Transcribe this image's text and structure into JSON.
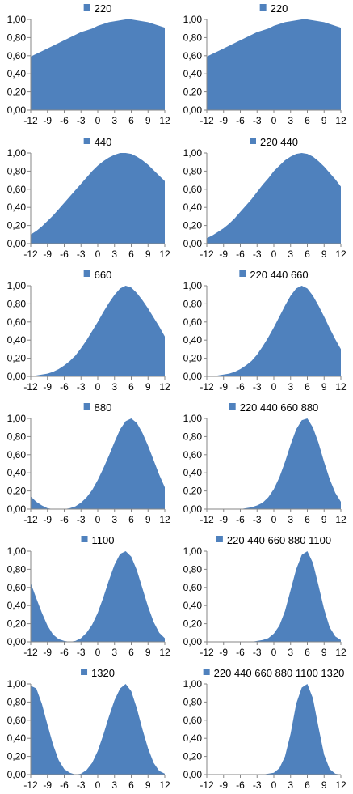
{
  "colors": {
    "series": "#4f81bd",
    "axis": "#868686"
  },
  "x_ticks": [
    "-12",
    "-9",
    "-6",
    "-3",
    "0",
    "3",
    "6",
    "9",
    "12"
  ],
  "y_ticks": [
    "0,00",
    "0,20",
    "0,40",
    "0,60",
    "0,80",
    "1,00"
  ],
  "chart_data": [
    {
      "type": "area",
      "legend": "220",
      "x": [
        -12,
        -11,
        -10,
        -9,
        -8,
        -7,
        -6,
        -5,
        -4,
        -3,
        -2,
        -1,
        0,
        1,
        2,
        3,
        4,
        5,
        6,
        7,
        8,
        9,
        10,
        11,
        12
      ],
      "series": [
        {
          "name": "220",
          "values": [
            0.59,
            0.62,
            0.65,
            0.68,
            0.71,
            0.74,
            0.77,
            0.8,
            0.83,
            0.86,
            0.88,
            0.9,
            0.93,
            0.95,
            0.97,
            0.98,
            0.99,
            1.0,
            1.0,
            0.99,
            0.98,
            0.97,
            0.95,
            0.93,
            0.91
          ]
        }
      ],
      "ylim": [
        0,
        1
      ]
    },
    {
      "type": "area",
      "legend": "220",
      "x": [
        -12,
        -11,
        -10,
        -9,
        -8,
        -7,
        -6,
        -5,
        -4,
        -3,
        -2,
        -1,
        0,
        1,
        2,
        3,
        4,
        5,
        6,
        7,
        8,
        9,
        10,
        11,
        12
      ],
      "series": [
        {
          "name": "220",
          "values": [
            0.59,
            0.62,
            0.65,
            0.68,
            0.71,
            0.74,
            0.77,
            0.8,
            0.83,
            0.86,
            0.88,
            0.9,
            0.93,
            0.95,
            0.97,
            0.98,
            0.99,
            1.0,
            1.0,
            0.99,
            0.98,
            0.97,
            0.95,
            0.93,
            0.91
          ]
        }
      ],
      "ylim": [
        0,
        1
      ]
    },
    {
      "type": "area",
      "legend": "440",
      "x": [
        -12,
        -11,
        -10,
        -9,
        -8,
        -7,
        -6,
        -5,
        -4,
        -3,
        -2,
        -1,
        0,
        1,
        2,
        3,
        4,
        5,
        6,
        7,
        8,
        9,
        10,
        11,
        12
      ],
      "series": [
        {
          "name": "440",
          "values": [
            0.1,
            0.14,
            0.19,
            0.25,
            0.31,
            0.38,
            0.45,
            0.52,
            0.59,
            0.66,
            0.73,
            0.8,
            0.86,
            0.91,
            0.95,
            0.98,
            1.0,
            1.0,
            0.99,
            0.96,
            0.92,
            0.87,
            0.81,
            0.75,
            0.69
          ]
        }
      ],
      "ylim": [
        0,
        1
      ]
    },
    {
      "type": "area",
      "legend": "220 440",
      "x": [
        -12,
        -11,
        -10,
        -9,
        -8,
        -7,
        -6,
        -5,
        -4,
        -3,
        -2,
        -1,
        0,
        1,
        2,
        3,
        4,
        5,
        6,
        7,
        8,
        9,
        10,
        11,
        12
      ],
      "series": [
        {
          "name": "220 440",
          "values": [
            0.06,
            0.09,
            0.13,
            0.17,
            0.22,
            0.28,
            0.35,
            0.42,
            0.49,
            0.57,
            0.65,
            0.72,
            0.8,
            0.86,
            0.92,
            0.96,
            0.99,
            1.0,
            0.99,
            0.96,
            0.91,
            0.85,
            0.78,
            0.71,
            0.63
          ]
        }
      ],
      "ylim": [
        0,
        1
      ]
    },
    {
      "type": "area",
      "legend": "660",
      "x": [
        -12,
        -11,
        -10,
        -9,
        -8,
        -7,
        -6,
        -5,
        -4,
        -3,
        -2,
        -1,
        0,
        1,
        2,
        3,
        4,
        5,
        6,
        7,
        8,
        9,
        10,
        11,
        12
      ],
      "series": [
        {
          "name": "660",
          "values": [
            0.0,
            0.01,
            0.02,
            0.03,
            0.05,
            0.08,
            0.12,
            0.17,
            0.23,
            0.31,
            0.4,
            0.5,
            0.6,
            0.71,
            0.81,
            0.9,
            0.97,
            1.0,
            0.98,
            0.92,
            0.84,
            0.75,
            0.65,
            0.55,
            0.44
          ]
        }
      ],
      "ylim": [
        0,
        1
      ]
    },
    {
      "type": "area",
      "legend": "220 440 660",
      "x": [
        -12,
        -11,
        -10,
        -9,
        -8,
        -7,
        -6,
        -5,
        -4,
        -3,
        -2,
        -1,
        0,
        1,
        2,
        3,
        4,
        5,
        6,
        7,
        8,
        9,
        10,
        11,
        12
      ],
      "series": [
        {
          "name": "220 440 660",
          "values": [
            0.0,
            0.0,
            0.01,
            0.02,
            0.03,
            0.05,
            0.08,
            0.12,
            0.17,
            0.24,
            0.33,
            0.43,
            0.54,
            0.66,
            0.78,
            0.89,
            0.97,
            1.0,
            0.97,
            0.89,
            0.78,
            0.66,
            0.53,
            0.41,
            0.3
          ]
        }
      ],
      "ylim": [
        0,
        1
      ]
    },
    {
      "type": "area",
      "legend": "880",
      "x": [
        -12,
        -11,
        -10,
        -9,
        -8,
        -7,
        -6,
        -5,
        -4,
        -3,
        -2,
        -1,
        0,
        1,
        2,
        3,
        4,
        5,
        6,
        7,
        8,
        9,
        10,
        11,
        12
      ],
      "series": [
        {
          "name": "880",
          "values": [
            0.14,
            0.08,
            0.04,
            0.01,
            0.0,
            0.0,
            0.0,
            0.01,
            0.03,
            0.07,
            0.13,
            0.21,
            0.32,
            0.45,
            0.59,
            0.74,
            0.88,
            0.97,
            1.0,
            0.95,
            0.84,
            0.7,
            0.54,
            0.38,
            0.24
          ]
        }
      ],
      "ylim": [
        0,
        1
      ]
    },
    {
      "type": "area",
      "legend": "220 440 660 880",
      "x": [
        -12,
        -11,
        -10,
        -9,
        -8,
        -7,
        -6,
        -5,
        -4,
        -3,
        -2,
        -1,
        0,
        1,
        2,
        3,
        4,
        5,
        6,
        7,
        8,
        9,
        10,
        11,
        12
      ],
      "series": [
        {
          "name": "220 440 660 880",
          "values": [
            0.0,
            0.0,
            0.0,
            0.0,
            0.0,
            0.0,
            0.0,
            0.01,
            0.02,
            0.04,
            0.07,
            0.13,
            0.22,
            0.35,
            0.52,
            0.71,
            0.88,
            0.98,
            1.0,
            0.9,
            0.73,
            0.52,
            0.33,
            0.18,
            0.08
          ]
        }
      ],
      "ylim": [
        0,
        1
      ]
    },
    {
      "type": "area",
      "legend": "1100",
      "x": [
        -12,
        -11,
        -10,
        -9,
        -8,
        -7,
        -6,
        -5,
        -4,
        -3,
        -2,
        -1,
        0,
        1,
        2,
        3,
        4,
        5,
        6,
        7,
        8,
        9,
        10,
        11,
        12
      ],
      "series": [
        {
          "name": "1100",
          "values": [
            0.65,
            0.48,
            0.32,
            0.18,
            0.08,
            0.03,
            0.01,
            0.0,
            0.01,
            0.04,
            0.1,
            0.19,
            0.32,
            0.49,
            0.68,
            0.85,
            0.97,
            1.0,
            0.94,
            0.79,
            0.59,
            0.39,
            0.22,
            0.1,
            0.04
          ]
        }
      ],
      "ylim": [
        0,
        1
      ]
    },
    {
      "type": "area",
      "legend": "220 440 660 880 1100",
      "x": [
        -12,
        -11,
        -10,
        -9,
        -8,
        -7,
        -6,
        -5,
        -4,
        -3,
        -2,
        -1,
        0,
        1,
        2,
        3,
        4,
        5,
        6,
        7,
        8,
        9,
        10,
        11,
        12
      ],
      "series": [
        {
          "name": "220 440 660 880 1100",
          "values": [
            0.0,
            0.0,
            0.0,
            0.0,
            0.0,
            0.0,
            0.0,
            0.0,
            0.0,
            0.01,
            0.02,
            0.04,
            0.09,
            0.18,
            0.34,
            0.57,
            0.8,
            0.96,
            1.0,
            0.87,
            0.62,
            0.36,
            0.16,
            0.06,
            0.02
          ]
        }
      ],
      "ylim": [
        0,
        1
      ]
    },
    {
      "type": "area",
      "legend": "1320",
      "x": [
        -12,
        -11,
        -10,
        -9,
        -8,
        -7,
        -6,
        -5,
        -4,
        -3,
        -2,
        -1,
        0,
        1,
        2,
        3,
        4,
        5,
        6,
        7,
        8,
        9,
        10,
        11,
        12
      ],
      "series": [
        {
          "name": "1320",
          "values": [
            0.98,
            0.95,
            0.78,
            0.55,
            0.33,
            0.16,
            0.06,
            0.02,
            0.0,
            0.01,
            0.05,
            0.13,
            0.26,
            0.44,
            0.64,
            0.82,
            0.95,
            1.0,
            0.92,
            0.73,
            0.5,
            0.29,
            0.13,
            0.04,
            0.01
          ]
        }
      ],
      "ylim": [
        0,
        1
      ]
    },
    {
      "type": "area",
      "legend": "220 440 660 880 1100 1320",
      "x": [
        -12,
        -11,
        -10,
        -9,
        -8,
        -7,
        -6,
        -5,
        -4,
        -3,
        -2,
        -1,
        0,
        1,
        2,
        3,
        4,
        5,
        6,
        7,
        8,
        9,
        10,
        11,
        12
      ],
      "series": [
        {
          "name": "220 440 660 880 1100 1320",
          "values": [
            0.0,
            0.0,
            0.0,
            0.0,
            0.0,
            0.0,
            0.0,
            0.0,
            0.0,
            0.0,
            0.0,
            0.01,
            0.02,
            0.07,
            0.2,
            0.45,
            0.78,
            0.96,
            1.0,
            0.84,
            0.52,
            0.22,
            0.06,
            0.01,
            0.0
          ]
        }
      ],
      "ylim": [
        0,
        1
      ]
    }
  ]
}
